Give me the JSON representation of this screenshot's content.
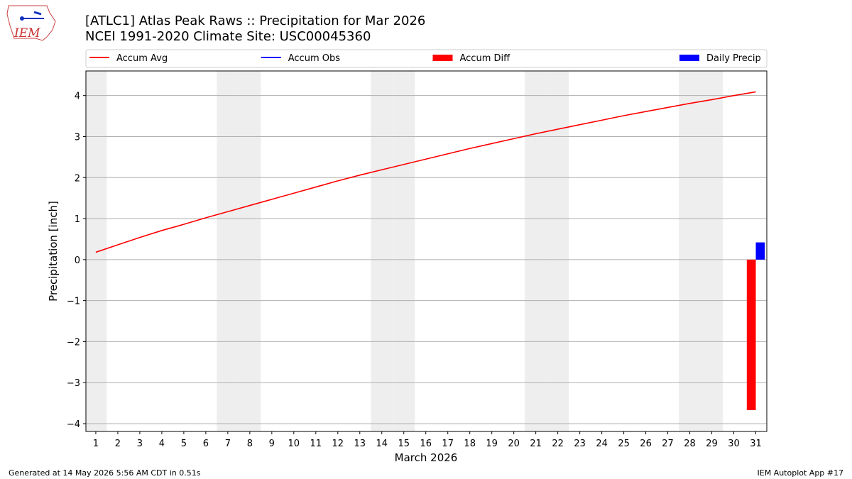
{
  "logo_text": "IEM",
  "footer_left": "Generated at 14 May 2026 5:56 AM CDT in 0.51s",
  "footer_right": "IEM Autoplot App #17",
  "chart_data": {
    "type": "line",
    "title": "[ATLC1] Atlas Peak Raws :: Precipitation for Mar 2026",
    "subtitle": "NCEI 1991-2020 Climate Site: USC00045360",
    "x_label": "March 2026",
    "y_label": "Precipitation [inch]",
    "x": [
      1,
      2,
      3,
      4,
      5,
      6,
      7,
      8,
      9,
      10,
      11,
      12,
      13,
      14,
      15,
      16,
      17,
      18,
      19,
      20,
      21,
      22,
      23,
      24,
      25,
      26,
      27,
      28,
      29,
      30,
      31
    ],
    "xlim": [
      0.55,
      31.5
    ],
    "xticks": [
      1,
      2,
      3,
      4,
      5,
      6,
      7,
      8,
      9,
      10,
      11,
      12,
      13,
      14,
      15,
      16,
      17,
      18,
      19,
      20,
      21,
      22,
      23,
      24,
      25,
      26,
      27,
      28,
      29,
      30,
      31
    ],
    "ylim": [
      -4.19,
      4.6
    ],
    "yticks": [
      {
        "value": -4,
        "label": "−4"
      },
      {
        "value": -3,
        "label": "−3"
      },
      {
        "value": -2,
        "label": "−2"
      },
      {
        "value": -1,
        "label": "−1"
      },
      0,
      1,
      2,
      3,
      4
    ],
    "grid": true,
    "shaded_days": [
      1,
      7,
      8,
      14,
      15,
      21,
      22,
      28,
      29
    ],
    "series": [
      {
        "name": "Accum Avg",
        "kind": "line",
        "color": "#ff0000",
        "values": [
          0.18,
          0.36,
          0.54,
          0.71,
          0.86,
          1.02,
          1.17,
          1.32,
          1.47,
          1.62,
          1.77,
          1.92,
          2.06,
          2.19,
          2.32,
          2.45,
          2.58,
          2.71,
          2.83,
          2.95,
          3.07,
          3.18,
          3.29,
          3.4,
          3.51,
          3.61,
          3.71,
          3.81,
          3.9,
          4.0,
          4.09
        ]
      },
      {
        "name": "Accum Obs",
        "kind": "line",
        "color": "#0000ff",
        "values": [
          null,
          null,
          null,
          null,
          null,
          null,
          null,
          null,
          null,
          null,
          null,
          null,
          null,
          null,
          null,
          null,
          null,
          null,
          null,
          null,
          null,
          null,
          null,
          null,
          null,
          null,
          null,
          null,
          null,
          null,
          0.42
        ]
      },
      {
        "name": "Accum Diff",
        "kind": "bar",
        "color": "#ff0000",
        "values": [
          null,
          null,
          null,
          null,
          null,
          null,
          null,
          null,
          null,
          null,
          null,
          null,
          null,
          null,
          null,
          null,
          null,
          null,
          null,
          null,
          null,
          null,
          null,
          null,
          null,
          null,
          null,
          null,
          null,
          null,
          -3.67
        ]
      },
      {
        "name": "Daily Precip",
        "kind": "bar",
        "color": "#0000ff",
        "values": [
          null,
          null,
          null,
          null,
          null,
          null,
          null,
          null,
          null,
          null,
          null,
          null,
          null,
          null,
          null,
          null,
          null,
          null,
          null,
          null,
          null,
          null,
          null,
          null,
          null,
          null,
          null,
          null,
          null,
          null,
          0.42
        ]
      }
    ]
  }
}
